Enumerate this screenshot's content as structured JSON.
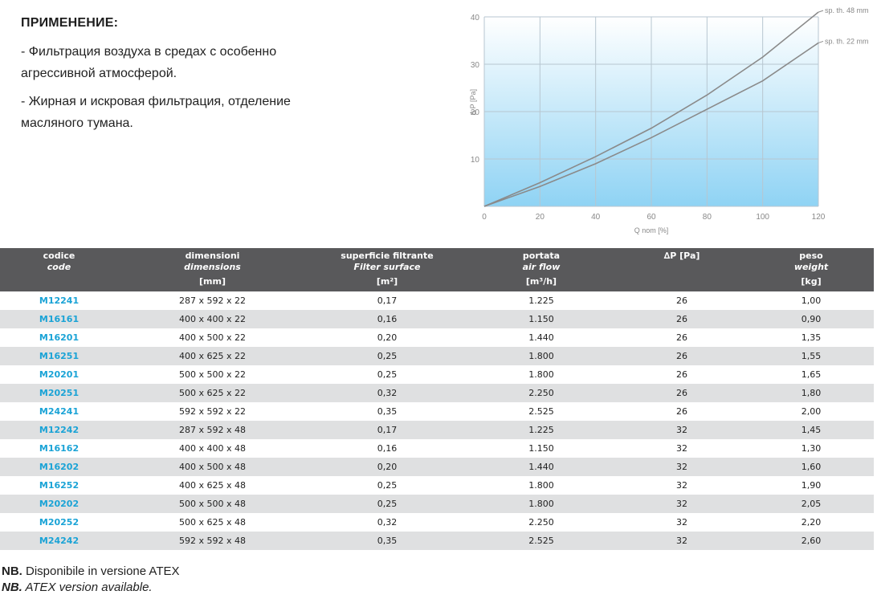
{
  "application": {
    "title": "ПРИМЕНЕНИЕ:",
    "bullets": [
      "- Фильтрация воздуха в средах с особенно агрессивной атмосферой.",
      "- Жирная и искровая фильтрация, отделение масляного тумана."
    ]
  },
  "chart_data": {
    "type": "line",
    "xlabel": "Q nom [%]",
    "ylabel": "Δ P [Pa]",
    "xlim": [
      0,
      120
    ],
    "ylim": [
      0,
      40
    ],
    "x_ticks": [
      "0",
      "20",
      "40",
      "60",
      "80",
      "100",
      "120"
    ],
    "y_ticks": [
      "10",
      "20",
      "30",
      "40"
    ],
    "grid": true,
    "series": [
      {
        "name": "sp. th. 48 mm",
        "x": [
          0,
          20,
          40,
          60,
          80,
          100,
          120
        ],
        "y": [
          0,
          5,
          10.5,
          16.5,
          23.5,
          31.5,
          41
        ]
      },
      {
        "name": "sp. th. 22 mm",
        "x": [
          0,
          20,
          40,
          60,
          80,
          100,
          120
        ],
        "y": [
          0,
          4.2,
          9,
          14.5,
          20.5,
          26.5,
          34.5
        ]
      }
    ]
  },
  "table": {
    "headers": [
      {
        "it": "codice",
        "en": "code",
        "unit": ""
      },
      {
        "it": "dimensioni",
        "en": "dimensions",
        "unit": "[mm]"
      },
      {
        "it": "superficie filtrante",
        "en": "Filter surface",
        "unit": "[m²]"
      },
      {
        "it": "portata",
        "en": "air flow",
        "unit": "[m³/h]"
      },
      {
        "it": "∆P [Pa]",
        "en": "",
        "unit": ""
      },
      {
        "it": "peso",
        "en": "weight",
        "unit": "[kg]"
      }
    ],
    "rows": [
      [
        "M12241",
        "287 x 592 x 22",
        "0,17",
        "1.225",
        "26",
        "1,00"
      ],
      [
        "M16161",
        "400 x 400 x 22",
        "0,16",
        "1.150",
        "26",
        "0,90"
      ],
      [
        "M16201",
        "400 x 500 x 22",
        "0,20",
        "1.440",
        "26",
        "1,35"
      ],
      [
        "M16251",
        "400 x 625 x 22",
        "0,25",
        "1.800",
        "26",
        "1,55"
      ],
      [
        "M20201",
        "500 x 500 x 22",
        "0,25",
        "1.800",
        "26",
        "1,65"
      ],
      [
        "M20251",
        "500 x 625 x 22",
        "0,32",
        "2.250",
        "26",
        "1,80"
      ],
      [
        "M24241",
        "592 x 592 x 22",
        "0,35",
        "2.525",
        "26",
        "2,00"
      ],
      [
        "M12242",
        "287 x 592 x 48",
        "0,17",
        "1.225",
        "32",
        "1,45"
      ],
      [
        "M16162",
        "400 x 400 x 48",
        "0,16",
        "1.150",
        "32",
        "1,30"
      ],
      [
        "M16202",
        "400 x 500 x 48",
        "0,20",
        "1.440",
        "32",
        "1,60"
      ],
      [
        "M16252",
        "400 x 625 x 48",
        "0,25",
        "1.800",
        "32",
        "1,90"
      ],
      [
        "M20202",
        "500 x 500 x 48",
        "0,25",
        "1.800",
        "32",
        "2,05"
      ],
      [
        "M20252",
        "500 x 625 x 48",
        "0,32",
        "2.250",
        "32",
        "2,20"
      ],
      [
        "M24242",
        "592 x 592 x 48",
        "0,35",
        "2.525",
        "32",
        "2,60"
      ]
    ]
  },
  "notes": {
    "nb_label": "NB.",
    "nb1_text": " Disponibile in versione ATEX",
    "nb2_text": " ATEX version available."
  },
  "colors": {
    "header_bg": "#59595b",
    "code_text": "#1aa3d6",
    "row_alt": "#dfe0e1",
    "chart_gradient_top": "#ffffff",
    "chart_gradient_bottom": "#8fd3f4",
    "curve": "#8a8a8a"
  }
}
